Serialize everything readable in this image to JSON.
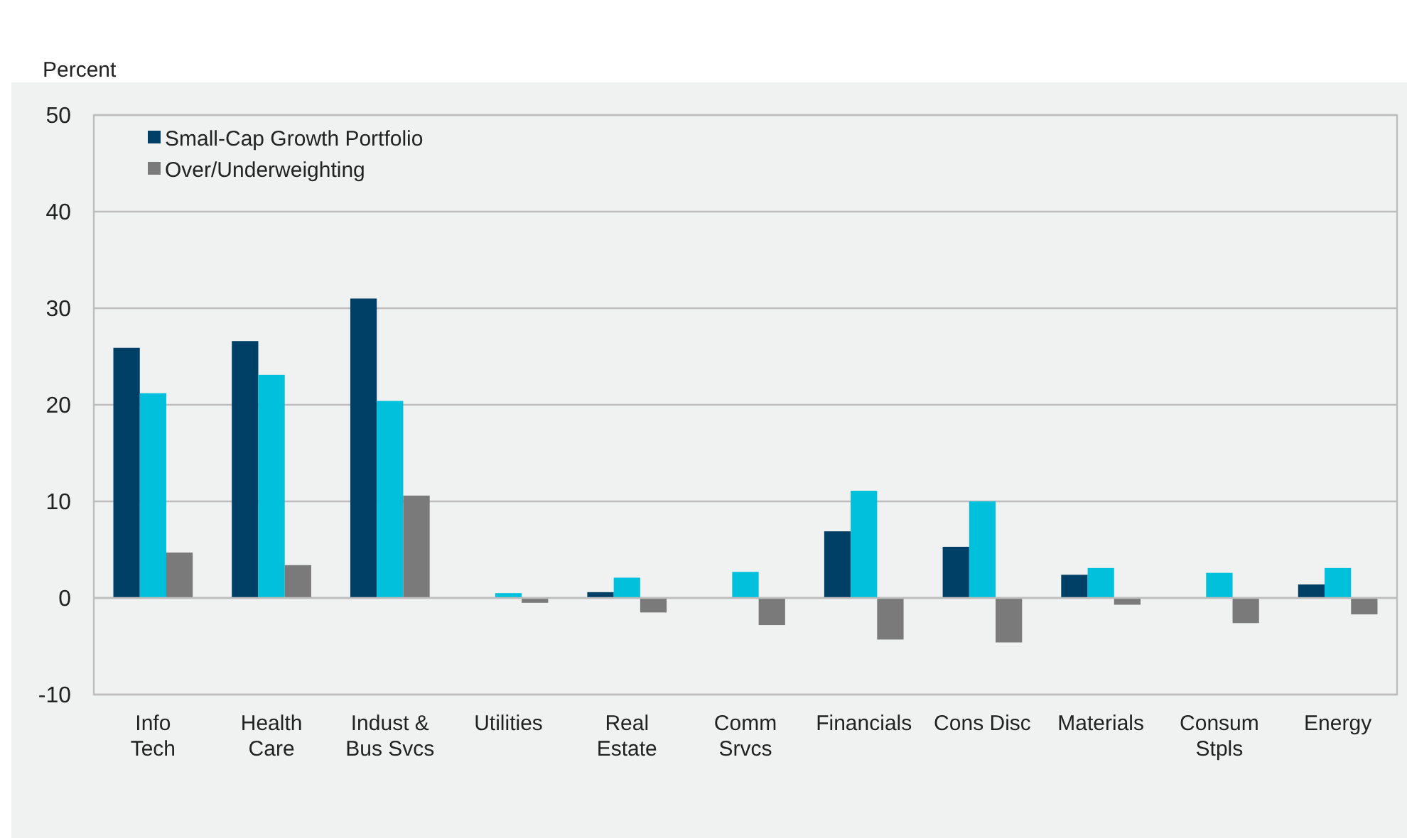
{
  "chart_data": {
    "type": "bar",
    "ylabel": "Percent",
    "categories": [
      "Info\nTech",
      "Health\nCare",
      "Indust &\nBus Svcs",
      "Utilities",
      "Real\nEstate",
      "Comm\nSrvcs",
      "Financials",
      "Cons Disc",
      "Materials",
      "Consum\nStpls",
      "Energy"
    ],
    "series": [
      {
        "name": "Small-Cap Growth Portfolio",
        "color": "#003f66",
        "values": [
          25.9,
          26.6,
          31.0,
          0,
          0.6,
          0,
          6.9,
          5.3,
          2.4,
          0,
          1.4
        ]
      },
      {
        "color": "#00c0dc",
        "values": [
          21.2,
          23.1,
          20.4,
          0.5,
          2.1,
          2.7,
          11.1,
          10.0,
          3.1,
          2.6,
          3.1
        ]
      },
      {
        "name": "Over/Underweighting",
        "color": "#7a7a7a",
        "values": [
          4.7,
          3.4,
          10.6,
          -0.5,
          -1.5,
          -2.8,
          -4.3,
          -4.6,
          -0.7,
          -2.6,
          -1.7
        ]
      }
    ],
    "ylim": [
      -10,
      50
    ],
    "yticks": [
      -10,
      0,
      10,
      20,
      30,
      40,
      50
    ],
    "grid": "y",
    "legend": "top left"
  }
}
